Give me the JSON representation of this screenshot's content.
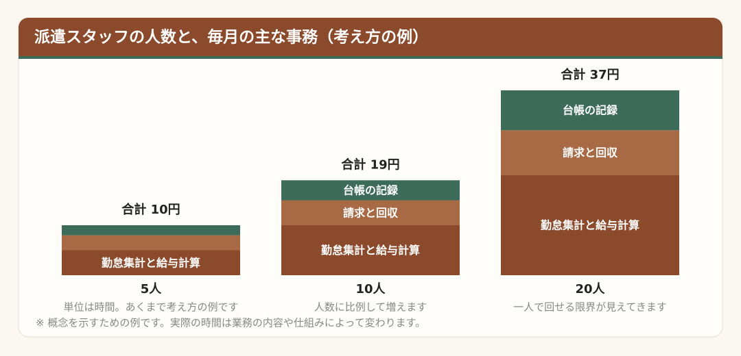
{
  "chart_data": {
    "type": "stacked_bar",
    "title": "派遣スタッフの人数と、毎月の主な事務（考え方の例）",
    "categories": [
      "5人",
      "10人",
      "20人"
    ],
    "category_notes": [
      "単位は時間。あくまで考え方の例です",
      "人数に比例して増えます",
      "一人で回せる限界が見えてきます"
    ],
    "total_labels": [
      "合計 10円",
      "合計 19円",
      "合計 37円"
    ],
    "series": [
      {
        "name": "勤怠集計と給与計算",
        "color": "#8b4a2b",
        "values": [
          5,
          10,
          20
        ]
      },
      {
        "name": "請求と回収",
        "color": "#a86a45",
        "values": [
          3,
          5,
          9
        ]
      },
      {
        "name": "台帳の記録",
        "color": "#3d6b5a",
        "values": [
          2,
          4,
          8
        ]
      }
    ],
    "ylim": [
      0,
      40
    ],
    "note": "※ 概念を示すための例です。実際の時間は業務の内容や仕組みによって変わります。"
  }
}
